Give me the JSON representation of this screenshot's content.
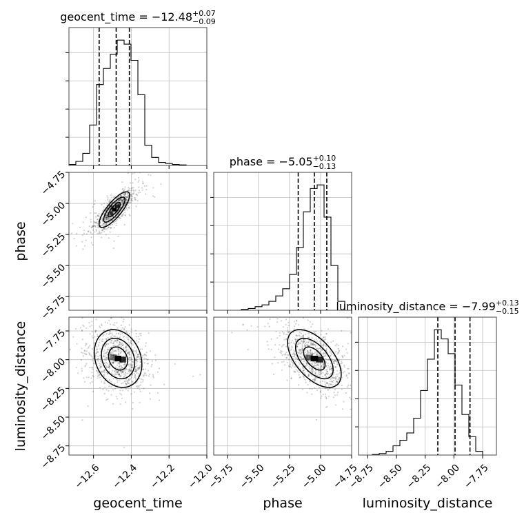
{
  "chart_data": {
    "type": "corner",
    "grid": true,
    "parameters": [
      {
        "name": "geocent_time",
        "axis_label": "geocent_time",
        "title": {
          "prefix": "geocent_time = ",
          "median": "−12.48",
          "plus": "+0.07",
          "minus": "−0.09"
        },
        "median": -12.48,
        "q_low": -12.57,
        "q_high": -12.41,
        "range": [
          -12.73,
          -12.0
        ],
        "ticks": [
          -12.6,
          -12.4,
          -12.2,
          -12.0
        ],
        "tick_labels": [
          "−12.6",
          "−12.4",
          "−12.2",
          "−12.0"
        ],
        "hist_edges_start": -12.73,
        "hist_bin_width": 0.0365,
        "hist_counts": [
          0.5,
          2,
          6,
          20,
          40,
          48,
          55,
          62,
          60,
          52,
          35,
          10,
          4,
          1.5,
          1,
          0.5,
          0.3,
          0,
          0,
          0
        ]
      },
      {
        "name": "phase",
        "axis_label": "phase",
        "title": {
          "prefix": "phase = ",
          "median": "−5.05",
          "plus": "+0.10",
          "minus": "−0.13"
        },
        "median": -5.05,
        "q_low": -5.18,
        "q_high": -4.95,
        "range": [
          -5.86,
          -4.75
        ],
        "ticks": [
          -5.75,
          -5.5,
          -5.25,
          -5.0,
          -4.75
        ],
        "tick_labels": [
          "−5.75",
          "−5.50",
          "−5.25",
          "−5.00",
          "−4.75"
        ],
        "hist_edges_start": -5.86,
        "hist_bin_width": 0.0555,
        "hist_counts": [
          0,
          0,
          0,
          0,
          0.5,
          1,
          2,
          3,
          5,
          8,
          12,
          20,
          35,
          55,
          68,
          70,
          52,
          25,
          5,
          0
        ]
      },
      {
        "name": "luminosity_distance",
        "axis_label": "luminosity_distance",
        "title": {
          "prefix": "luminosity_distance = ",
          "median": "−7.99",
          "plus": "+0.13",
          "minus": "−0.15"
        },
        "median": -7.99,
        "q_low": -8.14,
        "q_high": -7.86,
        "range": [
          -8.83,
          -7.63
        ],
        "ticks": [
          -8.75,
          -8.5,
          -8.25,
          -8.0,
          -7.75
        ],
        "tick_labels": [
          "−8.75",
          "−8.50",
          "−8.25",
          "−8.00",
          "−7.75"
        ],
        "hist_edges_start": -8.83,
        "hist_bin_width": 0.06,
        "hist_counts": [
          0,
          0,
          0.3,
          0.8,
          2,
          5,
          8,
          12,
          20,
          35,
          52,
          68,
          63,
          55,
          38,
          22,
          10,
          2,
          0,
          0
        ]
      }
    ],
    "pairs": [
      {
        "x_index": 0,
        "y_index": 1,
        "correlation": 0.8
      },
      {
        "x_index": 0,
        "y_index": 2,
        "correlation": -0.2
      },
      {
        "x_index": 1,
        "y_index": 2,
        "correlation": -0.55
      }
    ]
  }
}
